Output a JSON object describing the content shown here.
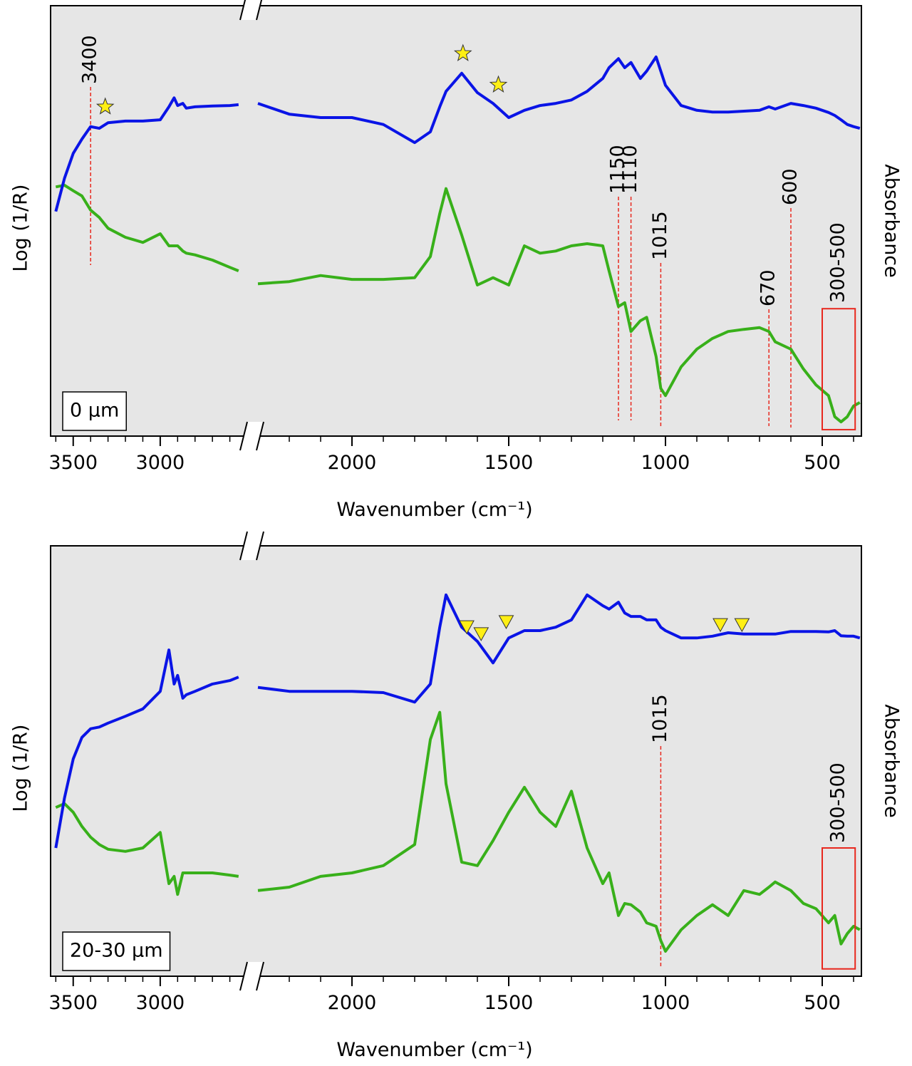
{
  "chart_data": [
    {
      "type": "line",
      "panel_label": "0 µm",
      "xlabel": "Wavenumber (cm⁻¹)",
      "x": [
        3600,
        3550,
        3500,
        3450,
        3400,
        3350,
        3300,
        3200,
        3100,
        3000,
        2950,
        2920,
        2900,
        2870,
        2850,
        2800,
        2700,
        2600,
        2550,
        2300,
        2200,
        2100,
        2000,
        1900,
        1800,
        1750,
        1720,
        1700,
        1650,
        1600,
        1550,
        1500,
        1450,
        1400,
        1350,
        1300,
        1250,
        1200,
        1180,
        1150,
        1130,
        1110,
        1080,
        1060,
        1030,
        1015,
        1000,
        950,
        900,
        850,
        800,
        750,
        700,
        670,
        650,
        600,
        560,
        520,
        480,
        460,
        440,
        420,
        400,
        380
      ],
      "xlim": [
        3630,
        375
      ],
      "x_break": [
        2500,
        2300
      ],
      "xticks": [
        3500,
        3000,
        2000,
        1500,
        1000,
        500
      ],
      "xticks_minor": [
        3600,
        3400,
        3300,
        3200,
        3100,
        2900,
        2800,
        2700,
        2600,
        2200,
        2100,
        1900,
        1800,
        1700,
        1600,
        1400,
        1300,
        1200,
        1100,
        900,
        800,
        700,
        600,
        400
      ],
      "ylim": [
        0,
        100
      ],
      "series": [
        {
          "name": "Log (1/R)",
          "color": "#38b01a",
          "values": [
            57.9,
            58.3,
            57.0,
            55.8,
            52.5,
            50.8,
            48.3,
            46.2,
            45.0,
            47.0,
            44.2,
            44.2,
            44.2,
            43.0,
            42.5,
            42.1,
            40.9,
            39.2,
            38.4,
            35.4,
            35.9,
            37.3,
            36.4,
            36.4,
            36.8,
            41.7,
            51.7,
            57.5,
            46.7,
            35.1,
            36.8,
            35.1,
            44.2,
            42.5,
            43.0,
            44.2,
            44.7,
            44.2,
            38.4,
            30.1,
            31.0,
            24.3,
            26.8,
            27.6,
            18.5,
            11.1,
            9.4,
            16.1,
            20.2,
            22.7,
            24.3,
            24.8,
            25.2,
            24.3,
            21.9,
            20.2,
            15.6,
            11.9,
            9.4,
            4.5,
            3.3,
            4.5,
            7.0,
            7.8
          ]
        },
        {
          "name": "Absorbance",
          "color": "#0a14e6",
          "axis": "y2",
          "values": [
            52.2,
            59.9,
            65.7,
            69.0,
            71.9,
            71.5,
            72.8,
            73.2,
            73.2,
            73.5,
            76.5,
            78.6,
            76.8,
            77.3,
            76.2,
            76.5,
            76.7,
            76.8,
            77.0,
            77.3,
            74.8,
            74.0,
            74.0,
            72.4,
            68.2,
            70.7,
            76.5,
            80.1,
            84.3,
            79.8,
            77.3,
            74.0,
            75.7,
            76.8,
            77.3,
            78.1,
            80.1,
            83.1,
            85.6,
            87.7,
            85.6,
            86.8,
            83.1,
            84.8,
            88.1,
            84.8,
            81.5,
            76.8,
            75.7,
            75.3,
            75.3,
            75.5,
            75.7,
            76.5,
            76.0,
            77.3,
            76.8,
            76.2,
            75.2,
            74.5,
            73.5,
            72.4,
            71.9,
            71.5
          ]
        }
      ],
      "markers": [
        3400,
        1150,
        1110,
        1015,
        670,
        600
      ],
      "region": {
        "label": "300-500",
        "x": [
          500,
          395
        ],
        "y": [
          29.6,
          1.5
        ]
      },
      "symbols": [
        {
          "shape": "star",
          "x": 3316,
          "y": 76.5
        },
        {
          "shape": "star",
          "x": 1646,
          "y": 88.9
        },
        {
          "shape": "star",
          "x": 1533,
          "y": 81.6
        }
      ]
    },
    {
      "type": "line",
      "panel_label": "20-30 µm",
      "xlabel": "Wavenumber (cm⁻¹)",
      "x": [
        3600,
        3550,
        3500,
        3450,
        3400,
        3350,
        3300,
        3200,
        3100,
        3000,
        2950,
        2920,
        2900,
        2870,
        2850,
        2800,
        2700,
        2600,
        2550,
        2300,
        2200,
        2100,
        2000,
        1900,
        1800,
        1750,
        1720,
        1700,
        1650,
        1600,
        1550,
        1500,
        1450,
        1400,
        1350,
        1300,
        1250,
        1200,
        1180,
        1150,
        1130,
        1110,
        1080,
        1060,
        1030,
        1015,
        1000,
        950,
        900,
        850,
        800,
        750,
        700,
        670,
        650,
        600,
        560,
        520,
        480,
        460,
        440,
        420,
        400,
        380
      ],
      "xlim": [
        3630,
        375
      ],
      "x_break": [
        2500,
        2300
      ],
      "xticks": [
        3500,
        3000,
        2000,
        1500,
        1000,
        500
      ],
      "xticks_minor": [
        3600,
        3400,
        3300,
        3200,
        3100,
        2900,
        2800,
        2700,
        2600,
        2200,
        2100,
        1900,
        1800,
        1700,
        1600,
        1400,
        1300,
        1200,
        1100,
        900,
        800,
        700,
        600,
        400
      ],
      "ylim": [
        0,
        100
      ],
      "series": [
        {
          "name": "Log (1/R)",
          "color": "#38b01a",
          "values": [
            39.2,
            40.1,
            38.1,
            34.8,
            32.3,
            30.6,
            29.5,
            29.0,
            29.8,
            33.4,
            21.5,
            23.2,
            19.0,
            24.0,
            24.0,
            24.0,
            24.0,
            23.5,
            23.2,
            19.9,
            20.7,
            23.2,
            24.0,
            25.7,
            30.6,
            55.0,
            61.3,
            44.7,
            26.5,
            25.7,
            31.5,
            38.1,
            43.9,
            38.1,
            34.8,
            43.0,
            29.8,
            21.5,
            24.0,
            14.1,
            16.9,
            16.6,
            14.9,
            12.4,
            11.6,
            8.3,
            5.8,
            10.8,
            14.1,
            16.6,
            14.1,
            19.9,
            19.0,
            20.7,
            21.9,
            19.9,
            16.9,
            15.7,
            12.4,
            14.1,
            7.5,
            9.9,
            11.6,
            10.8
          ]
        },
        {
          "name": "Absorbance",
          "color": "#0a14e6",
          "axis": "y2",
          "values": [
            29.8,
            41.4,
            50.5,
            55.5,
            57.5,
            57.9,
            58.8,
            60.4,
            62.1,
            66.2,
            75.8,
            67.9,
            69.9,
            64.6,
            65.4,
            66.2,
            67.9,
            68.7,
            69.5,
            67.1,
            66.2,
            66.2,
            66.2,
            65.9,
            63.7,
            67.9,
            81.1,
            88.6,
            81.1,
            77.8,
            72.8,
            78.6,
            80.3,
            80.3,
            81.1,
            82.8,
            88.6,
            86.1,
            85.3,
            86.9,
            84.4,
            83.6,
            83.6,
            82.8,
            82.8,
            81.1,
            80.3,
            78.6,
            78.6,
            79.0,
            79.8,
            79.5,
            79.5,
            79.5,
            79.5,
            80.1,
            80.1,
            80.1,
            80.0,
            80.3,
            79.1,
            79.0,
            79.0,
            78.6
          ]
        }
      ],
      "markers": [
        1015
      ],
      "region": {
        "label": "300-500",
        "x": [
          500,
          395
        ],
        "y": [
          29.8,
          1.7
        ]
      },
      "symbols": [
        {
          "shape": "triangle",
          "x": 1634,
          "y": 81.1
        },
        {
          "shape": "triangle",
          "x": 1588,
          "y": 79.5
        },
        {
          "shape": "triangle",
          "x": 1508,
          "y": 82.3
        },
        {
          "shape": "triangle",
          "x": 825,
          "y": 81.6
        },
        {
          "shape": "triangle",
          "x": 756,
          "y": 81.6
        }
      ]
    }
  ]
}
